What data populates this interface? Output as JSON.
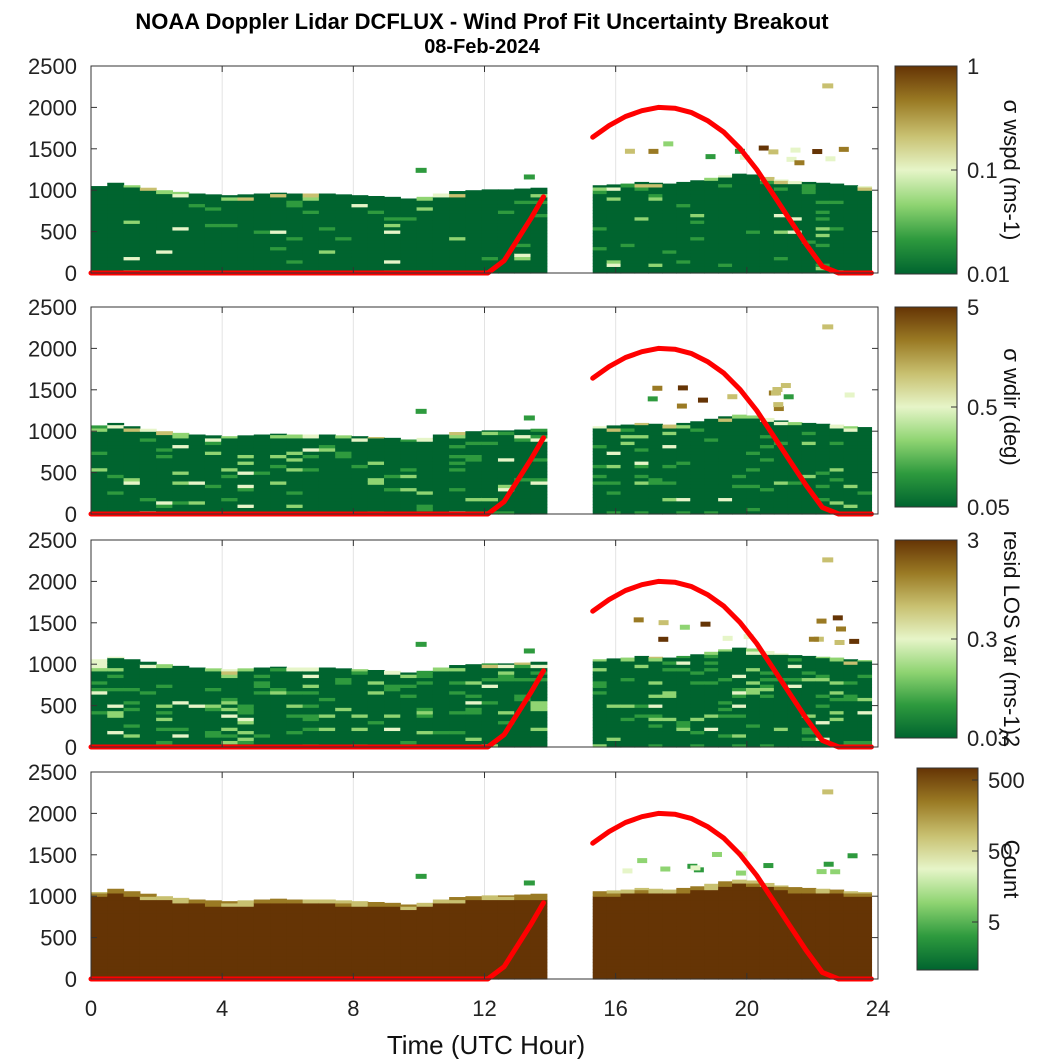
{
  "chart_data": {
    "type": "heatmap",
    "title": "NOAA Doppler Lidar DCFLUX - Wind Prof Fit Uncertainty Breakout",
    "subtitle": "08-Feb-2024",
    "xlabel": "Time (UTC Hour)",
    "xlim": [
      0,
      24
    ],
    "xticks": [
      "0",
      "4",
      "8",
      "12",
      "16",
      "20",
      "24"
    ],
    "ylim": [
      0,
      2500
    ],
    "yticks": [
      "0",
      "500",
      "1000",
      "1500",
      "2000",
      "2500"
    ],
    "grid": true,
    "data_gap_hours": [
      13.9,
      15.3
    ],
    "colors": {
      "scale": [
        "#00642f",
        "#2e9a3e",
        "#8fd472",
        "#e6f5c8",
        "#c8c070",
        "#9a7a24",
        "#653405"
      ],
      "overlay": "#ff0000"
    },
    "panels": [
      {
        "colorbar_label": "σ wspd (ms-1)",
        "colorbar_ticks": [
          "1",
          "0.1",
          "0.01"
        ],
        "colorbar_scale": "log",
        "top_m": [
          1050,
          1090,
          1060,
          1030,
          1000,
          980,
          960,
          950,
          940,
          950,
          960,
          970,
          960,
          960,
          960,
          950,
          940,
          930,
          920,
          900,
          920,
          960,
          990,
          1000,
          1010,
          1010,
          1020,
          1030,
          1060,
          1070,
          1080,
          1100,
          1090,
          1080,
          1100,
          1120,
          1150,
          1180,
          1200,
          1190,
          1160,
          1130,
          1110,
          1100,
          1090,
          1080,
          1060,
          1050
        ],
        "speckle": 1
      },
      {
        "colorbar_label": "σ wdir (deg)",
        "colorbar_ticks": [
          "5",
          "0.5",
          "0.05"
        ],
        "colorbar_scale": "log",
        "top_m": [
          1070,
          1100,
          1060,
          1030,
          1000,
          980,
          960,
          950,
          940,
          950,
          960,
          970,
          960,
          960,
          960,
          950,
          940,
          930,
          920,
          900,
          920,
          960,
          990,
          1000,
          1010,
          1010,
          1020,
          1030,
          1060,
          1070,
          1080,
          1100,
          1090,
          1080,
          1100,
          1120,
          1150,
          1180,
          1200,
          1190,
          1160,
          1130,
          1110,
          1100,
          1090,
          1080,
          1060,
          1050
        ],
        "speckle": 2
      },
      {
        "colorbar_label": "resid LOS var (ms-1)2",
        "colorbar_ticks": [
          "3",
          "0.3",
          "0.03"
        ],
        "colorbar_scale": "log",
        "top_m": [
          1060,
          1090,
          1060,
          1030,
          1000,
          980,
          960,
          950,
          940,
          950,
          960,
          970,
          960,
          960,
          960,
          950,
          940,
          930,
          920,
          900,
          920,
          960,
          990,
          1000,
          1010,
          1010,
          1020,
          1030,
          1060,
          1070,
          1080,
          1100,
          1090,
          1080,
          1100,
          1120,
          1150,
          1180,
          1200,
          1190,
          1160,
          1130,
          1110,
          1100,
          1090,
          1080,
          1060,
          1050
        ],
        "speckle": 3
      },
      {
        "colorbar_label": "Count",
        "colorbar_ticks": [
          "500",
          "50",
          "5"
        ],
        "colorbar_scale": "log",
        "top_m": [
          1050,
          1090,
          1060,
          1030,
          1000,
          980,
          960,
          950,
          940,
          950,
          960,
          970,
          960,
          960,
          960,
          950,
          940,
          930,
          920,
          900,
          920,
          960,
          990,
          1000,
          1010,
          1010,
          1020,
          1030,
          1060,
          1070,
          1080,
          1100,
          1090,
          1080,
          1100,
          1120,
          1150,
          1180,
          1200,
          1190,
          1160,
          1130,
          1110,
          1100,
          1090,
          1080,
          1060,
          1050
        ],
        "speckle": 0
      }
    ],
    "overlay_line": {
      "color": "#ff0000",
      "segments": [
        {
          "x": [
            0,
            12.1,
            12.6,
            13.0,
            13.4,
            13.8
          ],
          "y": [
            0,
            0,
            150,
            400,
            650,
            920
          ]
        },
        {
          "x": [
            15.3,
            15.8,
            16.3,
            16.8,
            17.3,
            17.8,
            18.3,
            18.8,
            19.3,
            19.8,
            20.3,
            20.8,
            21.3,
            21.8,
            22.3,
            22.8,
            23.8
          ],
          "y": [
            1640,
            1780,
            1890,
            1960,
            2000,
            1990,
            1940,
            1840,
            1700,
            1500,
            1250,
            950,
            650,
            350,
            80,
            0,
            0
          ]
        }
      ]
    }
  }
}
